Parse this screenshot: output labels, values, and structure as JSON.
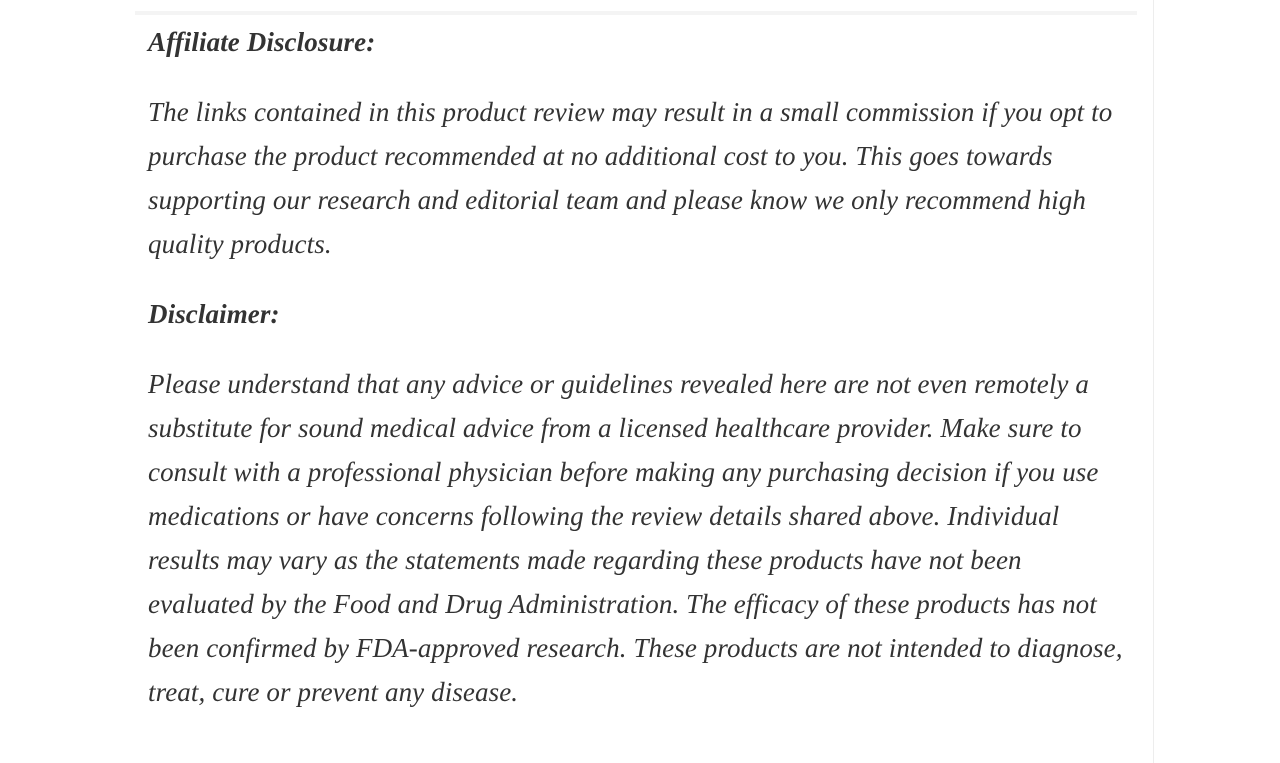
{
  "article": {
    "sections": [
      {
        "heading": "Affiliate Disclosure:",
        "body": "The links contained in this product review may result in a small commission if you opt to purchase the product recommended at no additional cost to you. This goes towards supporting our research and editorial team and please know we only recommend high quality products."
      },
      {
        "heading": "Disclaimer:",
        "body": "Please understand that any advice or guidelines revealed here are not even remotely a substitute for sound medical advice from a licensed healthcare provider. Make sure to consult with a professional physician before making any purchasing decision if you use medications or have concerns following the review details shared above. Individual results may vary as the statements made regarding these products have not been evaluated by the Food and Drug Administration. The efficacy of these products has not been confirmed by FDA-approved research. These products are not intended to diagnose, treat, cure or prevent any disease."
      }
    ]
  },
  "colors": {
    "text": "#333333",
    "background": "#ffffff",
    "right_rule": "#ededed",
    "top_strip": "#f4f4f4"
  }
}
